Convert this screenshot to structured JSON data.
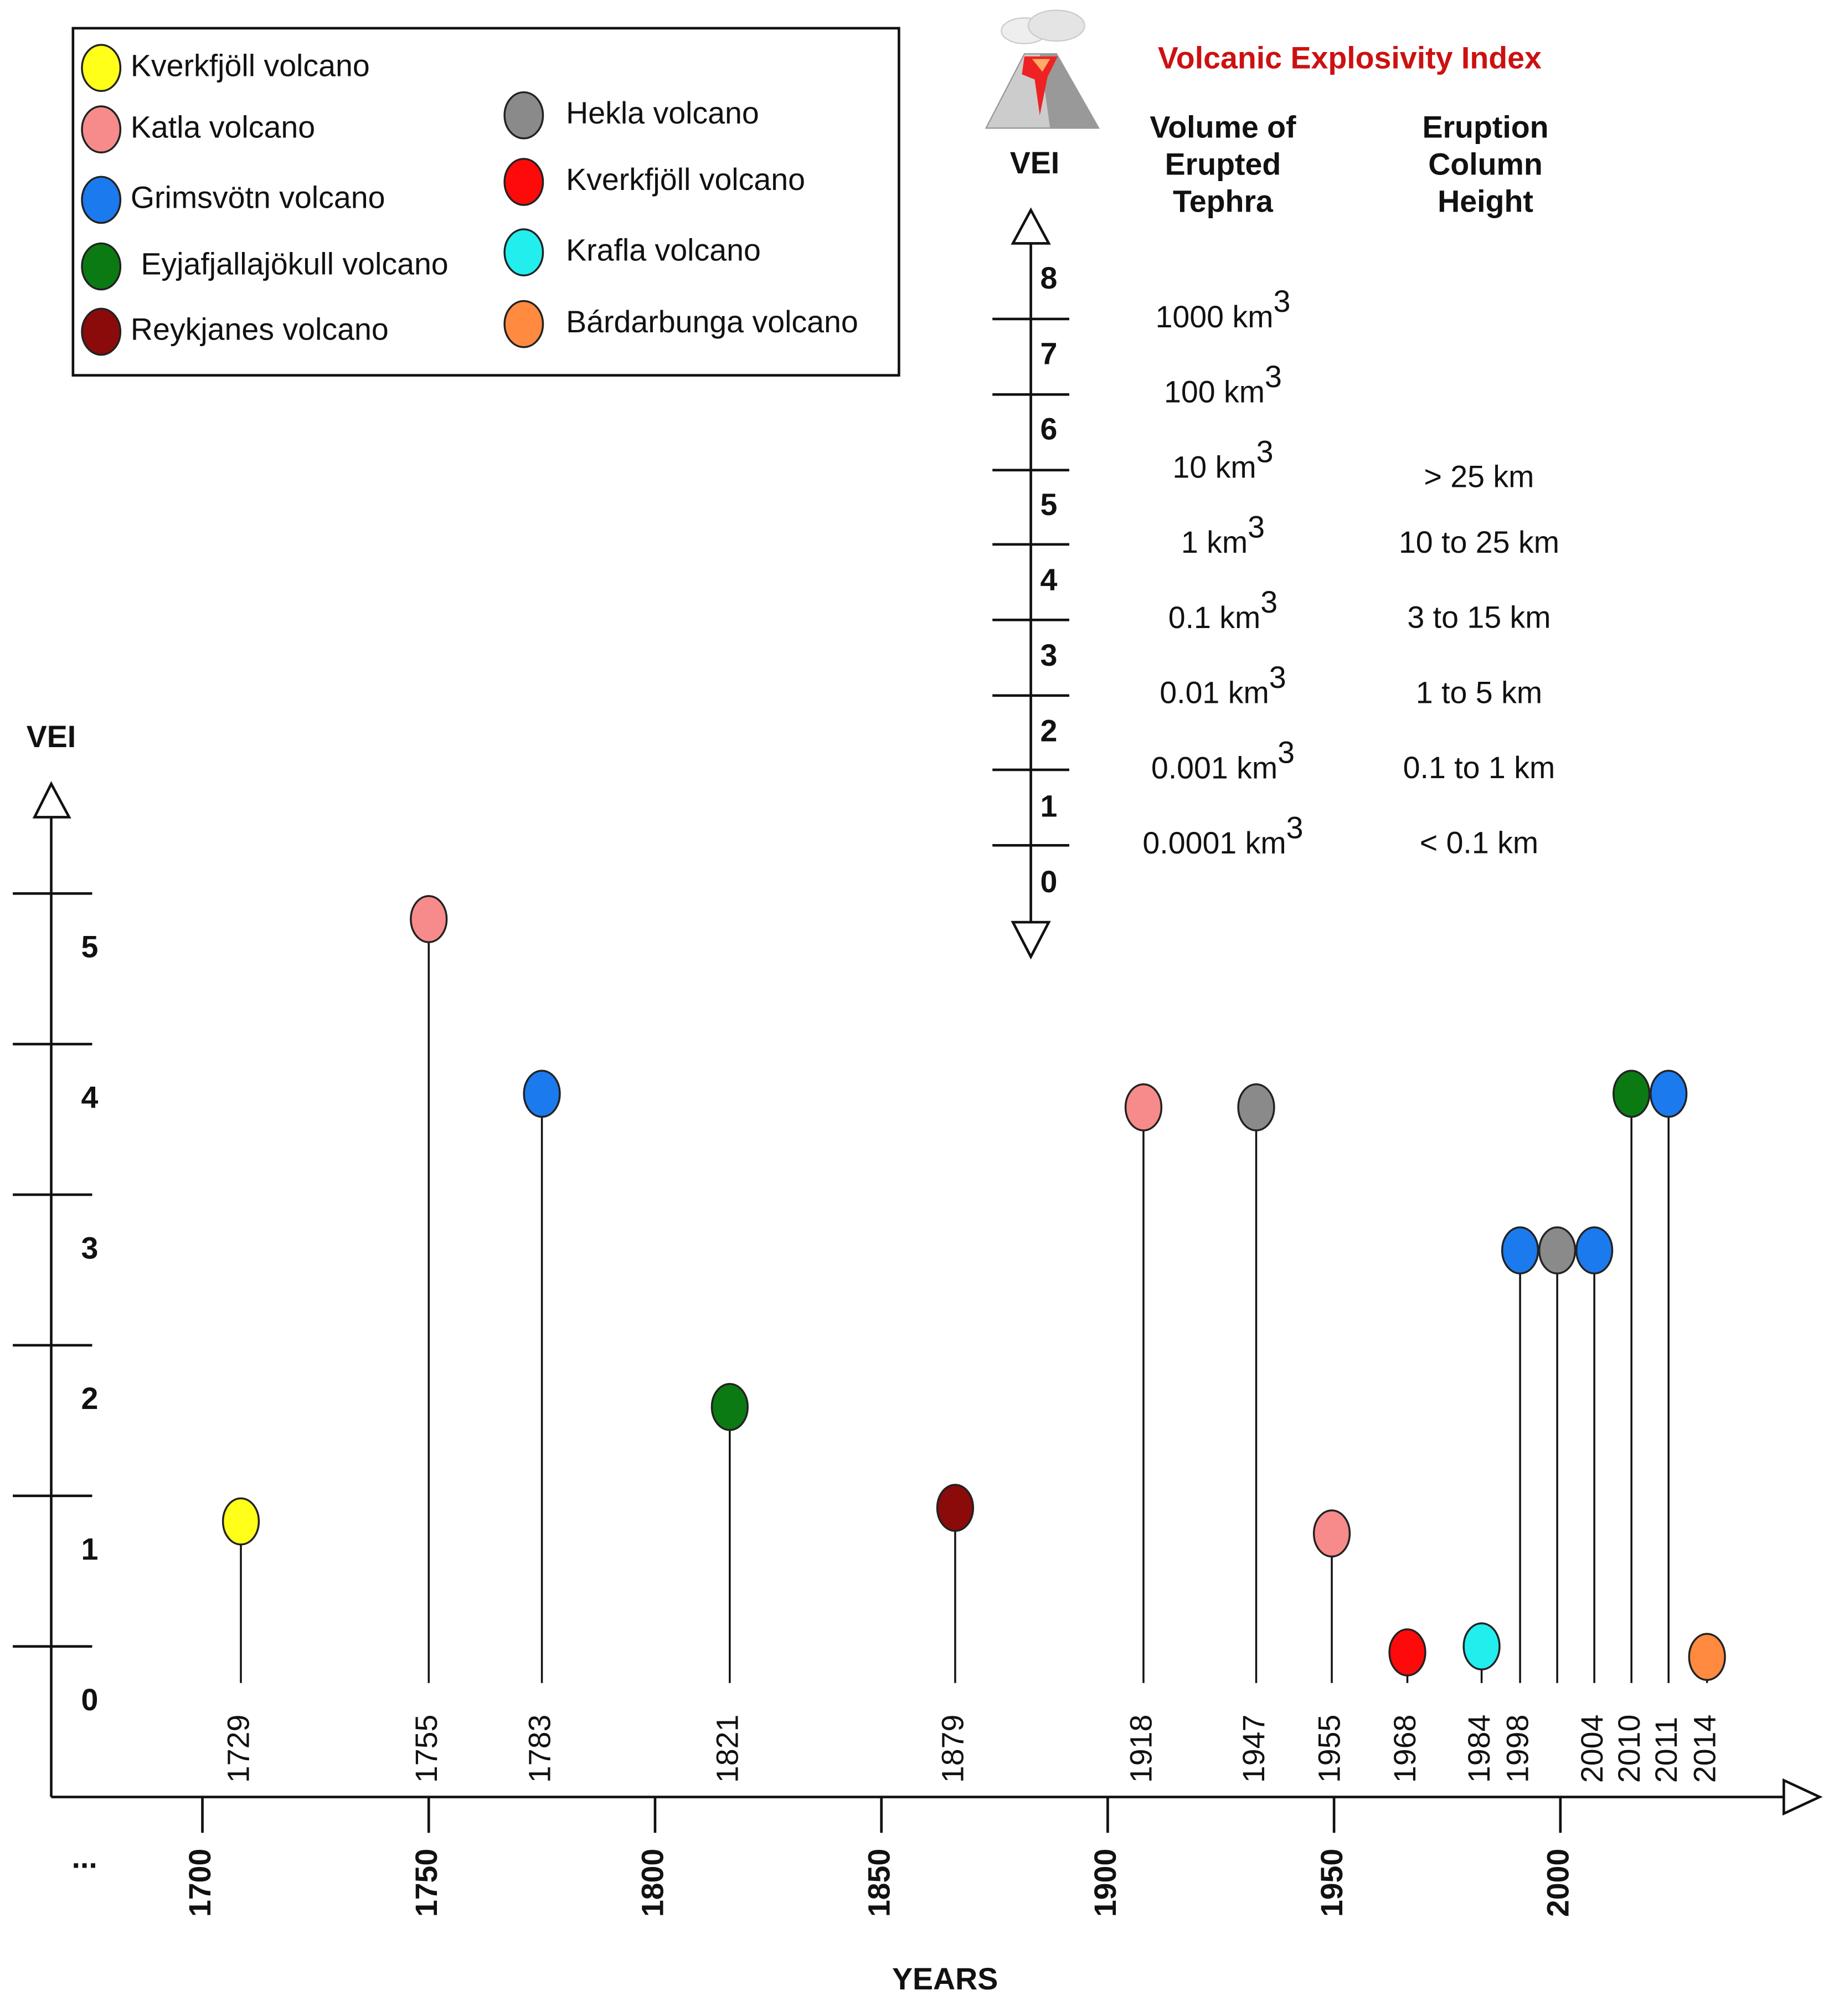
{
  "chart_data": {
    "type": "lollipop",
    "x_label": "YEARS",
    "y_label": "VEI",
    "x_axis_start_label": "...",
    "xlim": [
      1666.6,
      2057
    ],
    "xticks": [
      1700,
      1750,
      1800,
      1850,
      1900,
      1950,
      2000
    ],
    "ylim": [
      -0.63,
      5.86
    ],
    "yticks": [
      0,
      1,
      2,
      3,
      4,
      5
    ],
    "series": [
      {
        "name": "Kverkfjöll volcano",
        "color": "#ffff1a",
        "x": [
          1708.5
        ],
        "values": [
          1.2
        ],
        "labels": [
          "1729"
        ]
      },
      {
        "name": "Katla volcano",
        "color": "#f78a8a",
        "x": [
          1750,
          1907.9,
          1949.5
        ],
        "values": [
          5.2,
          3.95,
          1.12
        ],
        "labels": [
          "1755",
          "1918",
          "1955"
        ]
      },
      {
        "name": "Grimsvötn volcano",
        "color": "#1a7aee",
        "x": [
          1775,
          1991.1,
          2007.5,
          2023.9
        ],
        "values": [
          4.04,
          3,
          3,
          4.04
        ],
        "labels": [
          "1783",
          "1998",
          "2004",
          "2011"
        ]
      },
      {
        "name": "Eyjafjallajökull volcano",
        "color": "#0b7a12",
        "x": [
          1816.5,
          2015.7
        ],
        "values": [
          1.96,
          4.04
        ],
        "labels": [
          "1821",
          "2010"
        ]
      },
      {
        "name": "Reykjanes volcano",
        "color": "#8b0a0a",
        "x": [
          1866.3
        ],
        "values": [
          1.29
        ],
        "labels": [
          "1879"
        ]
      },
      {
        "name": "Hekla volcano",
        "color": "#8a8a8a",
        "x": [
          1932.8,
          1999.3
        ],
        "values": [
          3.95,
          3
        ],
        "labels": [
          "1947",
          null
        ]
      },
      {
        "name": "Kverkfjöll volcano",
        "color": "#ff0a0a",
        "x": [
          1966.2
        ],
        "values": [
          0.33
        ],
        "labels": [
          "1968"
        ]
      },
      {
        "name": "Krafla volcano",
        "color": "#22eeee",
        "x": [
          1982.6
        ],
        "values": [
          0.37
        ],
        "labels": [
          "1984"
        ]
      },
      {
        "name": "Bárdarbunga volcano",
        "color": "#ff8a40",
        "x": [
          2032.4
        ],
        "values": [
          0.3
        ],
        "labels": [
          "2014"
        ]
      }
    ]
  },
  "vei_scale": {
    "title": "Volcanic Explosivity Index",
    "axis_label": "VEI",
    "volume_header": [
      "Volume of",
      "Erupted",
      "Tephra"
    ],
    "height_header": [
      "Eruption",
      "Column",
      "Height"
    ],
    "levels": [
      "8",
      "7",
      "6",
      "5",
      "4",
      "3",
      "2",
      "1",
      "0"
    ],
    "volumes": [
      "1000 km",
      "100 km",
      "10 km",
      "1 km",
      "0.1 km",
      "0.01 km",
      "0.001 km",
      "0.0001 km"
    ],
    "volume_exponents": [
      "3",
      "3",
      "3",
      "3",
      "3",
      "3",
      "3",
      "3"
    ],
    "heights": [
      "> 25 km",
      "10 to 25 km",
      "3 to 15 km",
      "1 to 5 km",
      "0.1 to 1 km",
      "< 0.1 km"
    ]
  }
}
